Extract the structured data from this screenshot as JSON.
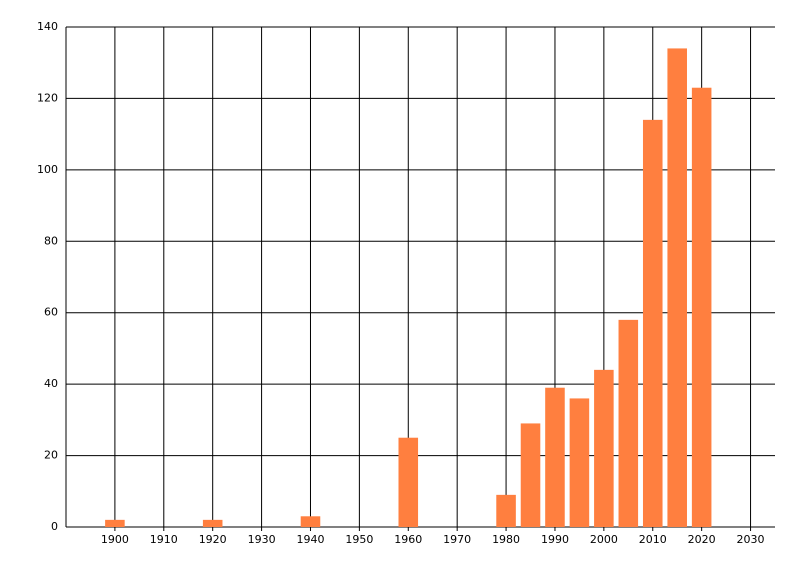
{
  "chart_data": {
    "type": "bar",
    "x": [
      1900,
      1920,
      1940,
      1960,
      1980,
      1985,
      1990,
      1995,
      2000,
      2005,
      2010,
      2015,
      2020
    ],
    "values": [
      2,
      2,
      3,
      25,
      9,
      29,
      39,
      36,
      44,
      58,
      114,
      134,
      123
    ],
    "color": "#ff7f3f",
    "xlim": [
      1890,
      2035
    ],
    "xticks": [
      1900,
      1910,
      1920,
      1930,
      1940,
      1950,
      1960,
      1970,
      1980,
      1990,
      2000,
      2010,
      2020,
      2030
    ],
    "ylim": [
      0,
      140
    ],
    "yticks": [
      0,
      20,
      40,
      60,
      80,
      100,
      120,
      140
    ],
    "grid": true
  }
}
